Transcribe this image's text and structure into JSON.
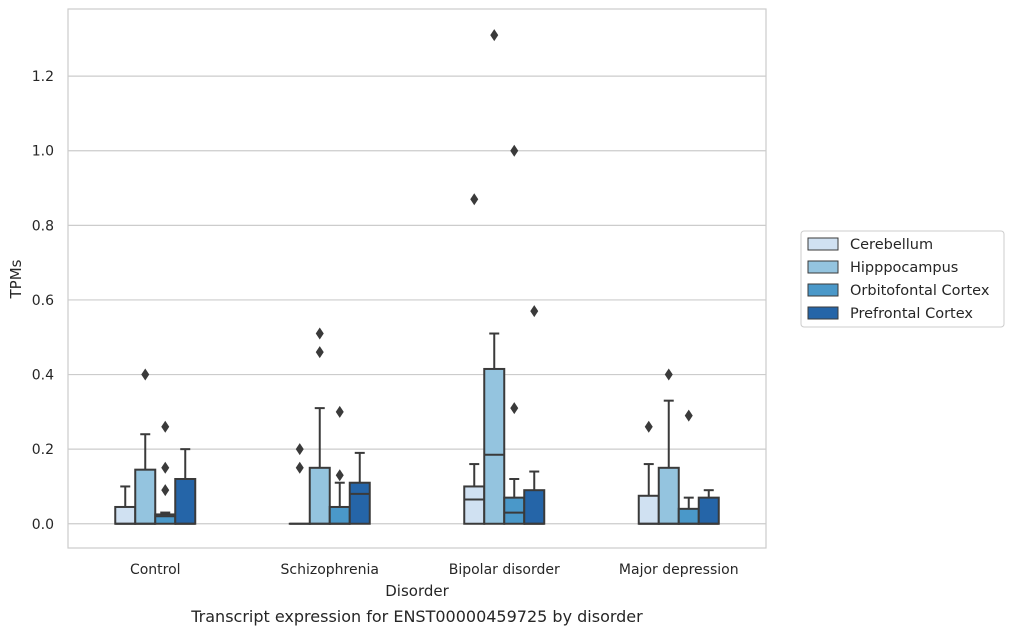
{
  "caption": "Transcript expression for ENST00000459725 by disorder",
  "chart_data": {
    "type": "box",
    "title": "",
    "xlabel": "Disorder",
    "ylabel": "TPMs",
    "ylim": [
      -0.065,
      1.38
    ],
    "yticks": [
      0.0,
      0.2,
      0.4,
      0.6,
      0.8,
      1.0,
      1.2
    ],
    "ytick_labels": [
      "0.0",
      "0.2",
      "0.4",
      "0.6",
      "0.8",
      "1.0",
      "1.2"
    ],
    "grid": "horizontal",
    "legend_position": "right",
    "categories": [
      "Control",
      "Schizophrenia",
      "Bipolar disorder",
      "Major depression"
    ],
    "series": [
      {
        "name": "Cerebellum",
        "color": "#d0e1f2",
        "boxes": [
          {
            "q1": 0.0,
            "median": 0.0,
            "q3": 0.045,
            "whisker_low": 0.0,
            "whisker_high": 0.1,
            "outliers": []
          },
          {
            "q1": 0.0,
            "median": 0.0,
            "q3": 0.0,
            "whisker_low": 0.0,
            "whisker_high": 0.0,
            "outliers": [
              0.15,
              0.2
            ]
          },
          {
            "q1": 0.0,
            "median": 0.065,
            "q3": 0.1,
            "whisker_low": 0.0,
            "whisker_high": 0.16,
            "outliers": [
              0.87
            ]
          },
          {
            "q1": 0.0,
            "median": 0.0,
            "q3": 0.075,
            "whisker_low": 0.0,
            "whisker_high": 0.16,
            "outliers": [
              0.26
            ]
          }
        ]
      },
      {
        "name": "Hipppocampus",
        "color": "#94c4df",
        "boxes": [
          {
            "q1": 0.0,
            "median": 0.0,
            "q3": 0.145,
            "whisker_low": 0.0,
            "whisker_high": 0.24,
            "outliers": [
              0.4
            ]
          },
          {
            "q1": 0.0,
            "median": 0.0,
            "q3": 0.15,
            "whisker_low": 0.0,
            "whisker_high": 0.31,
            "outliers": [
              0.46,
              0.51
            ]
          },
          {
            "q1": 0.0,
            "median": 0.185,
            "q3": 0.415,
            "whisker_low": 0.0,
            "whisker_high": 0.51,
            "outliers": [
              1.31
            ]
          },
          {
            "q1": 0.0,
            "median": 0.0,
            "q3": 0.15,
            "whisker_low": 0.0,
            "whisker_high": 0.33,
            "outliers": [
              0.4
            ]
          }
        ]
      },
      {
        "name": "Orbitofontal Cortex",
        "color": "#4a98c9",
        "boxes": [
          {
            "q1": 0.0,
            "median": 0.02,
            "q3": 0.025,
            "whisker_low": 0.0,
            "whisker_high": 0.03,
            "outliers": [
              0.09,
              0.15,
              0.26
            ]
          },
          {
            "q1": 0.0,
            "median": 0.0,
            "q3": 0.045,
            "whisker_low": 0.0,
            "whisker_high": 0.11,
            "outliers": [
              0.13,
              0.3
            ]
          },
          {
            "q1": 0.0,
            "median": 0.03,
            "q3": 0.07,
            "whisker_low": 0.0,
            "whisker_high": 0.12,
            "outliers": [
              0.31,
              1.0
            ]
          },
          {
            "q1": 0.0,
            "median": 0.0,
            "q3": 0.04,
            "whisker_low": 0.0,
            "whisker_high": 0.07,
            "outliers": [
              0.29
            ]
          }
        ]
      },
      {
        "name": "Prefrontal Cortex",
        "color": "#2565a8",
        "boxes": [
          {
            "q1": 0.0,
            "median": 0.0,
            "q3": 0.12,
            "whisker_low": 0.0,
            "whisker_high": 0.2,
            "outliers": []
          },
          {
            "q1": 0.0,
            "median": 0.08,
            "q3": 0.11,
            "whisker_low": 0.0,
            "whisker_high": 0.19,
            "outliers": []
          },
          {
            "q1": 0.0,
            "median": 0.0,
            "q3": 0.09,
            "whisker_low": 0.0,
            "whisker_high": 0.14,
            "outliers": [
              0.57
            ]
          },
          {
            "q1": 0.0,
            "median": 0.0,
            "q3": 0.07,
            "whisker_low": 0.0,
            "whisker_high": 0.09,
            "outliers": []
          }
        ]
      }
    ]
  }
}
